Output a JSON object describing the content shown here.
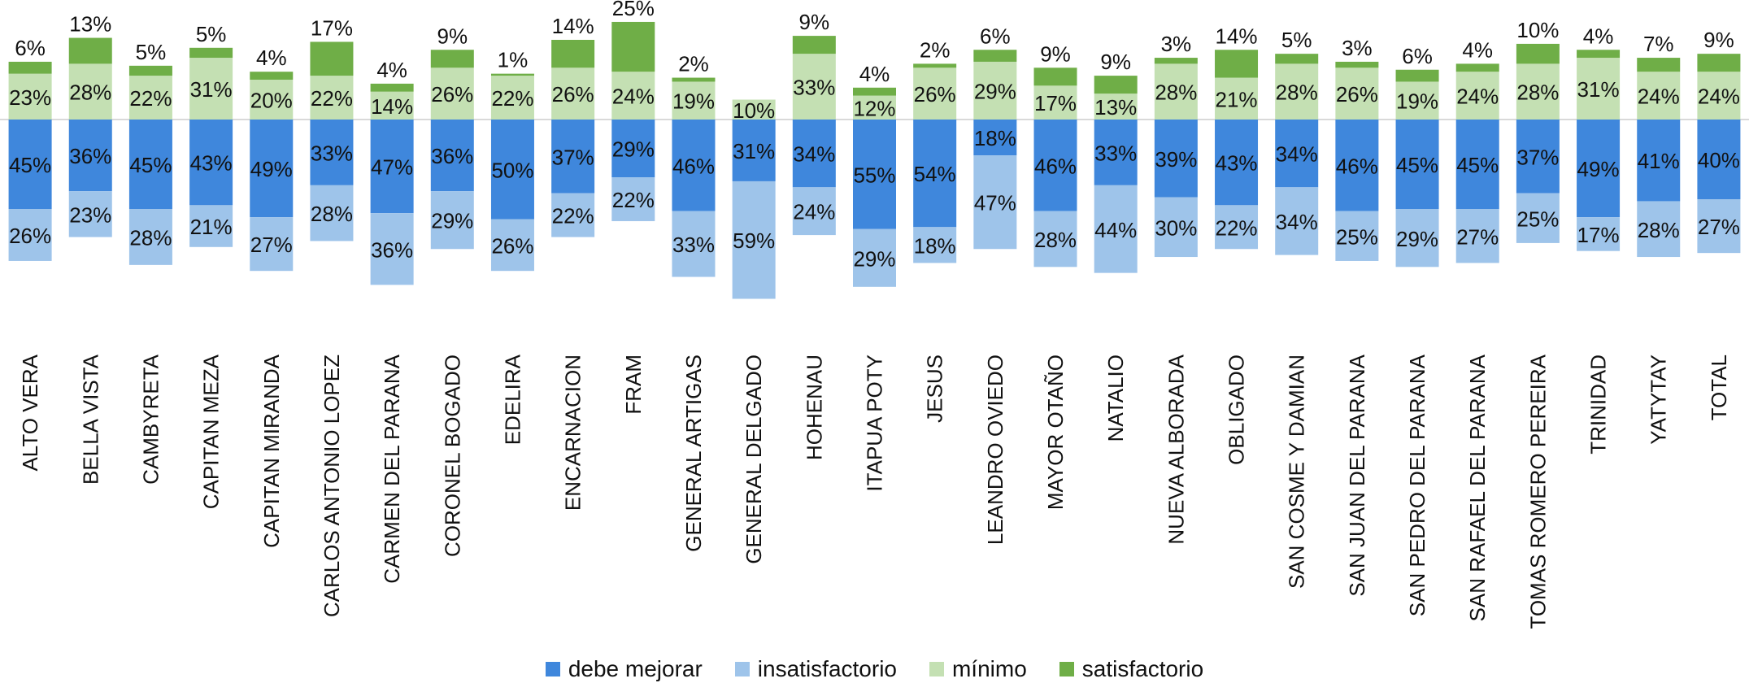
{
  "chart_data": {
    "type": "bar",
    "stacking": "diverging-percent",
    "grid": false,
    "legend_position": "bottom",
    "categories": [
      "ALTO VERA",
      "BELLA VISTA",
      "CAMBYRETA",
      "CAPITAN MEZA",
      "CAPITAN MIRANDA",
      "CARLOS ANTONIO LOPEZ",
      "CARMEN DEL PARANA",
      "CORONEL BOGADO",
      "EDELIRA",
      "ENCARNACION",
      "FRAM",
      "GENERAL ARTIGAS",
      "GENERAL DELGADO",
      "HOHENAU",
      "ITAPUA POTY",
      "JESUS",
      "LEANDRO OVIEDO",
      "MAYOR OTAÑO",
      "NATALIO",
      "NUEVA ALBORADA",
      "OBLIGADO",
      "SAN COSME Y DAMIAN",
      "SAN JUAN DEL PARANA",
      "SAN PEDRO DEL PARANA",
      "SAN RAFAEL DEL PARANA",
      "TOMAS ROMERO PEREIRA",
      "TRINIDAD",
      "YATYTAY",
      "TOTAL"
    ],
    "series": [
      {
        "name": "debe mejorar",
        "color": "#3f87dc",
        "direction": "below",
        "values": [
          45,
          36,
          45,
          43,
          49,
          33,
          47,
          36,
          50,
          37,
          29,
          46,
          31,
          34,
          55,
          54,
          18,
          46,
          33,
          39,
          43,
          34,
          46,
          45,
          45,
          37,
          49,
          41,
          40
        ]
      },
      {
        "name": "insatisfactorio",
        "color": "#9ec4ea",
        "direction": "below",
        "values": [
          26,
          23,
          28,
          21,
          27,
          28,
          36,
          29,
          26,
          22,
          22,
          33,
          59,
          24,
          29,
          18,
          47,
          28,
          44,
          30,
          22,
          34,
          25,
          29,
          27,
          25,
          17,
          28,
          27
        ]
      },
      {
        "name": "mínimo",
        "color": "#c4e0b3",
        "direction": "above",
        "values": [
          23,
          28,
          22,
          31,
          20,
          22,
          14,
          26,
          22,
          26,
          24,
          19,
          10,
          33,
          12,
          26,
          29,
          17,
          13,
          28,
          21,
          28,
          26,
          19,
          24,
          28,
          31,
          24,
          24
        ]
      },
      {
        "name": "satisfactorio",
        "color": "#6fae47",
        "direction": "above",
        "values": [
          6,
          13,
          5,
          5,
          4,
          17,
          4,
          9,
          1,
          14,
          25,
          2,
          0,
          9,
          4,
          2,
          6,
          9,
          9,
          3,
          14,
          5,
          3,
          6,
          4,
          10,
          4,
          7,
          9
        ]
      }
    ],
    "value_suffix": "%",
    "hidden_labels": [
      [],
      [],
      [],
      [
        "12"
      ]
    ],
    "ylim": [
      -90,
      50
    ]
  }
}
